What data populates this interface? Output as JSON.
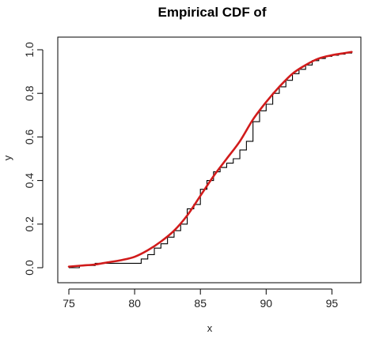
{
  "chart_data": {
    "type": "line",
    "title": "Empirical CDF of",
    "xlabel": "x",
    "ylabel": "y",
    "xlim": [
      75,
      96.6
    ],
    "ylim": [
      0,
      1
    ],
    "x_ticks": [
      75,
      80,
      85,
      90,
      95
    ],
    "y_ticks": [
      0.0,
      0.2,
      0.4,
      0.6,
      0.8,
      1.0
    ],
    "x_tick_labels": [
      "75",
      "80",
      "85",
      "90",
      "95"
    ],
    "y_tick_labels": [
      "0.0",
      "0.2",
      "0.4",
      "0.6",
      "0.8",
      "1.0"
    ],
    "grid": false,
    "series": [
      {
        "kind": "step",
        "color": "#000000",
        "x": [
          75.0,
          75.8,
          77.0,
          80.5,
          81.0,
          81.5,
          82.0,
          82.5,
          83.0,
          83.5,
          84.0,
          84.5,
          85.0,
          85.5,
          86.0,
          86.5,
          87.0,
          87.5,
          88.0,
          88.5,
          89.0,
          89.5,
          90.0,
          90.5,
          91.0,
          91.5,
          92.0,
          92.5,
          93.0,
          93.5,
          94.0,
          94.5,
          95.0,
          95.5,
          96.0,
          96.5
        ],
        "y": [
          0.0,
          0.01,
          0.02,
          0.04,
          0.06,
          0.09,
          0.11,
          0.14,
          0.17,
          0.2,
          0.27,
          0.29,
          0.36,
          0.4,
          0.44,
          0.46,
          0.48,
          0.5,
          0.54,
          0.58,
          0.67,
          0.72,
          0.75,
          0.8,
          0.83,
          0.86,
          0.89,
          0.91,
          0.93,
          0.95,
          0.96,
          0.97,
          0.975,
          0.98,
          0.985,
          0.99
        ]
      },
      {
        "kind": "smooth",
        "color": "#d11b1b",
        "x": [
          75,
          76,
          77,
          78,
          79,
          80,
          81,
          82,
          83,
          84,
          85,
          86,
          87,
          88,
          89,
          90,
          91,
          92,
          93,
          94,
          95,
          96,
          96.5
        ],
        "y": [
          0.005,
          0.01,
          0.015,
          0.025,
          0.035,
          0.05,
          0.08,
          0.12,
          0.17,
          0.24,
          0.33,
          0.42,
          0.5,
          0.58,
          0.68,
          0.76,
          0.83,
          0.89,
          0.93,
          0.96,
          0.975,
          0.985,
          0.99
        ]
      }
    ]
  }
}
